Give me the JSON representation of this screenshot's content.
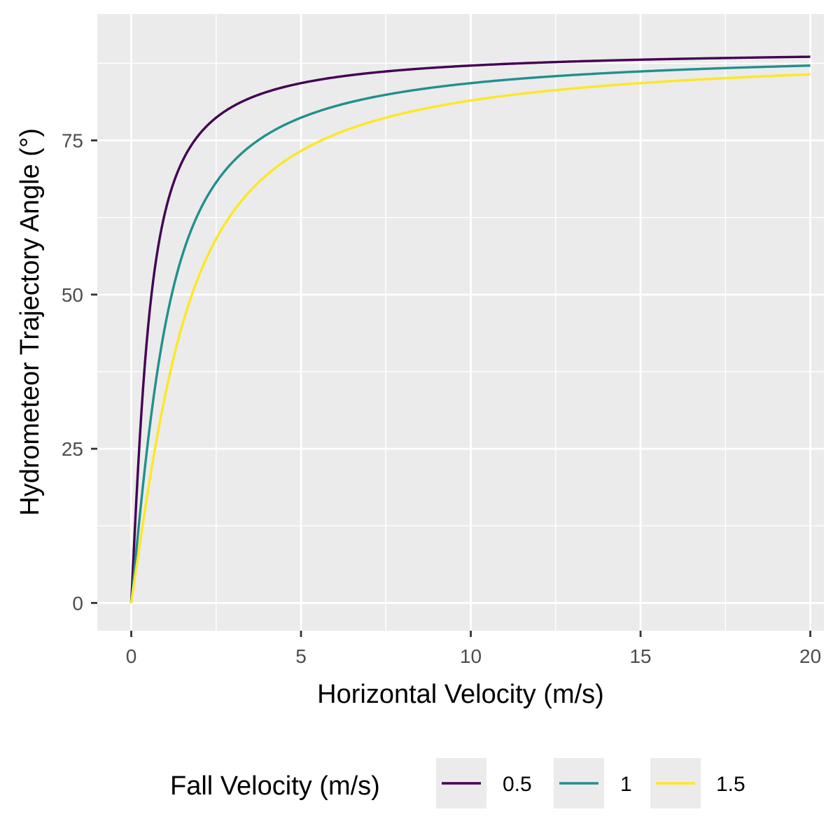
{
  "chart_data": {
    "type": "line",
    "title": "",
    "xlabel": "Horizontal Velocity (m/s)",
    "ylabel": "Hydrometeor Trajectory Angle (°)",
    "xlim": [
      -1,
      20.4
    ],
    "ylim": [
      -4.5,
      95.5
    ],
    "x_ticks": [
      0,
      5,
      10,
      15,
      20
    ],
    "x_tick_labels": [
      "0",
      "5",
      "10",
      "15",
      "20"
    ],
    "y_ticks": [
      0,
      25,
      50,
      75
    ],
    "y_tick_labels": [
      "0",
      "25",
      "50",
      "75"
    ],
    "grid": true,
    "legend_title": "Fall Velocity (m/s)",
    "legend_position": "bottom",
    "x_range": [
      0,
      20
    ],
    "formula": "degrees(atan(x / fall_velocity))",
    "series": [
      {
        "name": "0.5",
        "fall_velocity": 0.5,
        "color": "#440154"
      },
      {
        "name": "1",
        "fall_velocity": 1,
        "color": "#21908C"
      },
      {
        "name": "1.5",
        "fall_velocity": 1.5,
        "color": "#FDE725"
      }
    ],
    "sample_points": {
      "x": [
        0,
        0.5,
        1,
        2,
        3,
        5,
        10,
        15,
        20
      ],
      "0.5": [
        0,
        45,
        63.4,
        76.0,
        80.5,
        84.3,
        87.1,
        88.1,
        88.6
      ],
      "1": [
        0,
        26.6,
        45,
        63.4,
        71.6,
        78.7,
        84.3,
        86.2,
        87.1
      ],
      "1.5": [
        0,
        18.4,
        33.7,
        53.1,
        63.4,
        73.3,
        81.5,
        84.3,
        85.7
      ]
    }
  },
  "colors": {
    "panel_background": "#EBEBEB",
    "grid_line": "#FFFFFF",
    "tick_mark": "#333333"
  }
}
